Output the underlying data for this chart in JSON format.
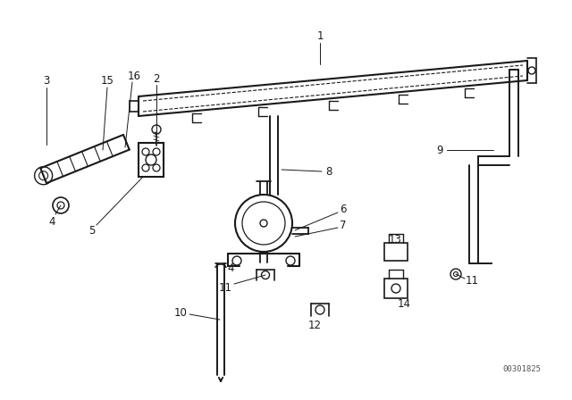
{
  "bg_color": "#ffffff",
  "line_color": "#1a1a1a",
  "fig_width": 6.4,
  "fig_height": 4.48,
  "dpi": 100,
  "watermark": "00301825"
}
